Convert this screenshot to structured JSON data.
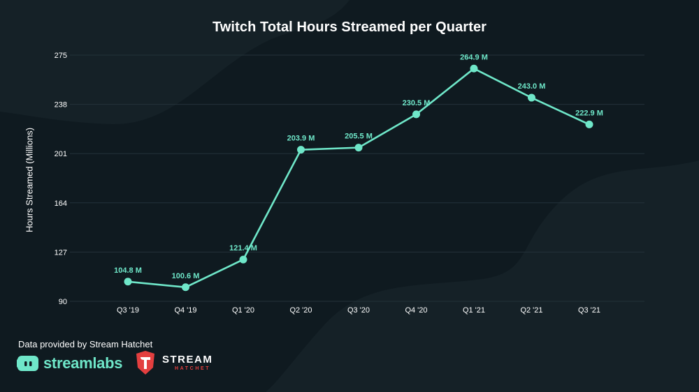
{
  "chart_data": {
    "type": "line",
    "title": "Twitch Total Hours Streamed per Quarter",
    "xlabel": "",
    "ylabel": "Hours Streamed (Millions)",
    "categories": [
      "Q3 '19",
      "Q4 '19",
      "Q1 '20",
      "Q2 '20",
      "Q3 '20",
      "Q4 '20",
      "Q1 '21",
      "Q2 '21",
      "Q3 '21"
    ],
    "series": [
      {
        "values": [
          104.8,
          100.6,
          121.4,
          203.9,
          205.5,
          230.5,
          264.9,
          243.0,
          222.9
        ],
        "data_labels": [
          "104.8 M",
          "100.6 M",
          "121.4 M",
          "203.9 M",
          "205.5 M",
          "230.5 M",
          "264.9 M",
          "243.0 M",
          "222.9 M"
        ],
        "color": "#6fe7c9"
      }
    ],
    "yticks": [
      "90",
      "127",
      "164",
      "201",
      "238",
      "275"
    ],
    "ylim": [
      90,
      275
    ],
    "grid": true,
    "legend": "none"
  },
  "footer": {
    "note": "Data provided by Stream Hatchet",
    "streamlabs_logo_text": "streamlabs",
    "hatchet_logo_text": "STREAM",
    "hatchet_logo_sub": "HATCHET"
  },
  "colors": {
    "background": "#0f1a20",
    "accent": "#6fe7c9",
    "grid": "#24323a",
    "hatchet_red": "#e33f3f"
  }
}
